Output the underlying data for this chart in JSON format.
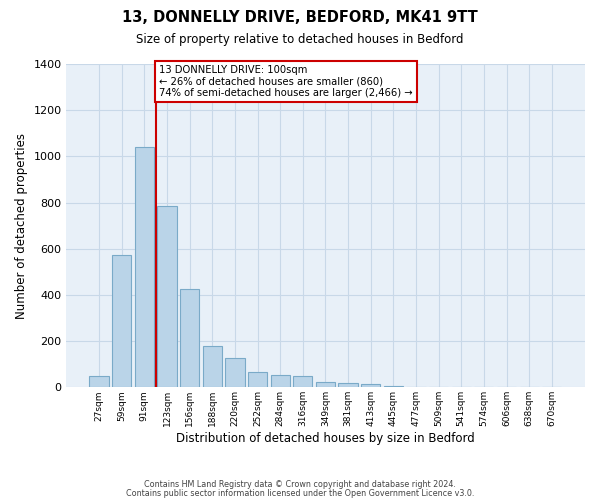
{
  "title": "13, DONNELLY DRIVE, BEDFORD, MK41 9TT",
  "subtitle": "Size of property relative to detached houses in Bedford",
  "xlabel": "Distribution of detached houses by size in Bedford",
  "ylabel": "Number of detached properties",
  "bar_labels": [
    "27sqm",
    "59sqm",
    "91sqm",
    "123sqm",
    "156sqm",
    "188sqm",
    "220sqm",
    "252sqm",
    "284sqm",
    "316sqm",
    "349sqm",
    "381sqm",
    "413sqm",
    "445sqm",
    "477sqm",
    "509sqm",
    "541sqm",
    "574sqm",
    "606sqm",
    "638sqm",
    "670sqm"
  ],
  "bar_values": [
    50,
    575,
    1040,
    785,
    425,
    180,
    125,
    65,
    55,
    50,
    25,
    20,
    15,
    5,
    0,
    0,
    0,
    0,
    0,
    0,
    0
  ],
  "bar_color": "#bad4e8",
  "bar_edge_color": "#7aaac8",
  "ylim": [
    0,
    1400
  ],
  "yticks": [
    0,
    200,
    400,
    600,
    800,
    1000,
    1200,
    1400
  ],
  "redline_x": 2.5,
  "annotation_text": "13 DONNELLY DRIVE: 100sqm\n← 26% of detached houses are smaller (860)\n74% of semi-detached houses are larger (2,466) →",
  "annotation_box_color": "#ffffff",
  "annotation_border_color": "#cc0000",
  "redline_color": "#cc0000",
  "footer_line1": "Contains HM Land Registry data © Crown copyright and database right 2024.",
  "footer_line2": "Contains public sector information licensed under the Open Government Licence v3.0.",
  "background_color": "#ffffff",
  "grid_color": "#c8d8e8",
  "plot_bg_color": "#e8f0f8"
}
